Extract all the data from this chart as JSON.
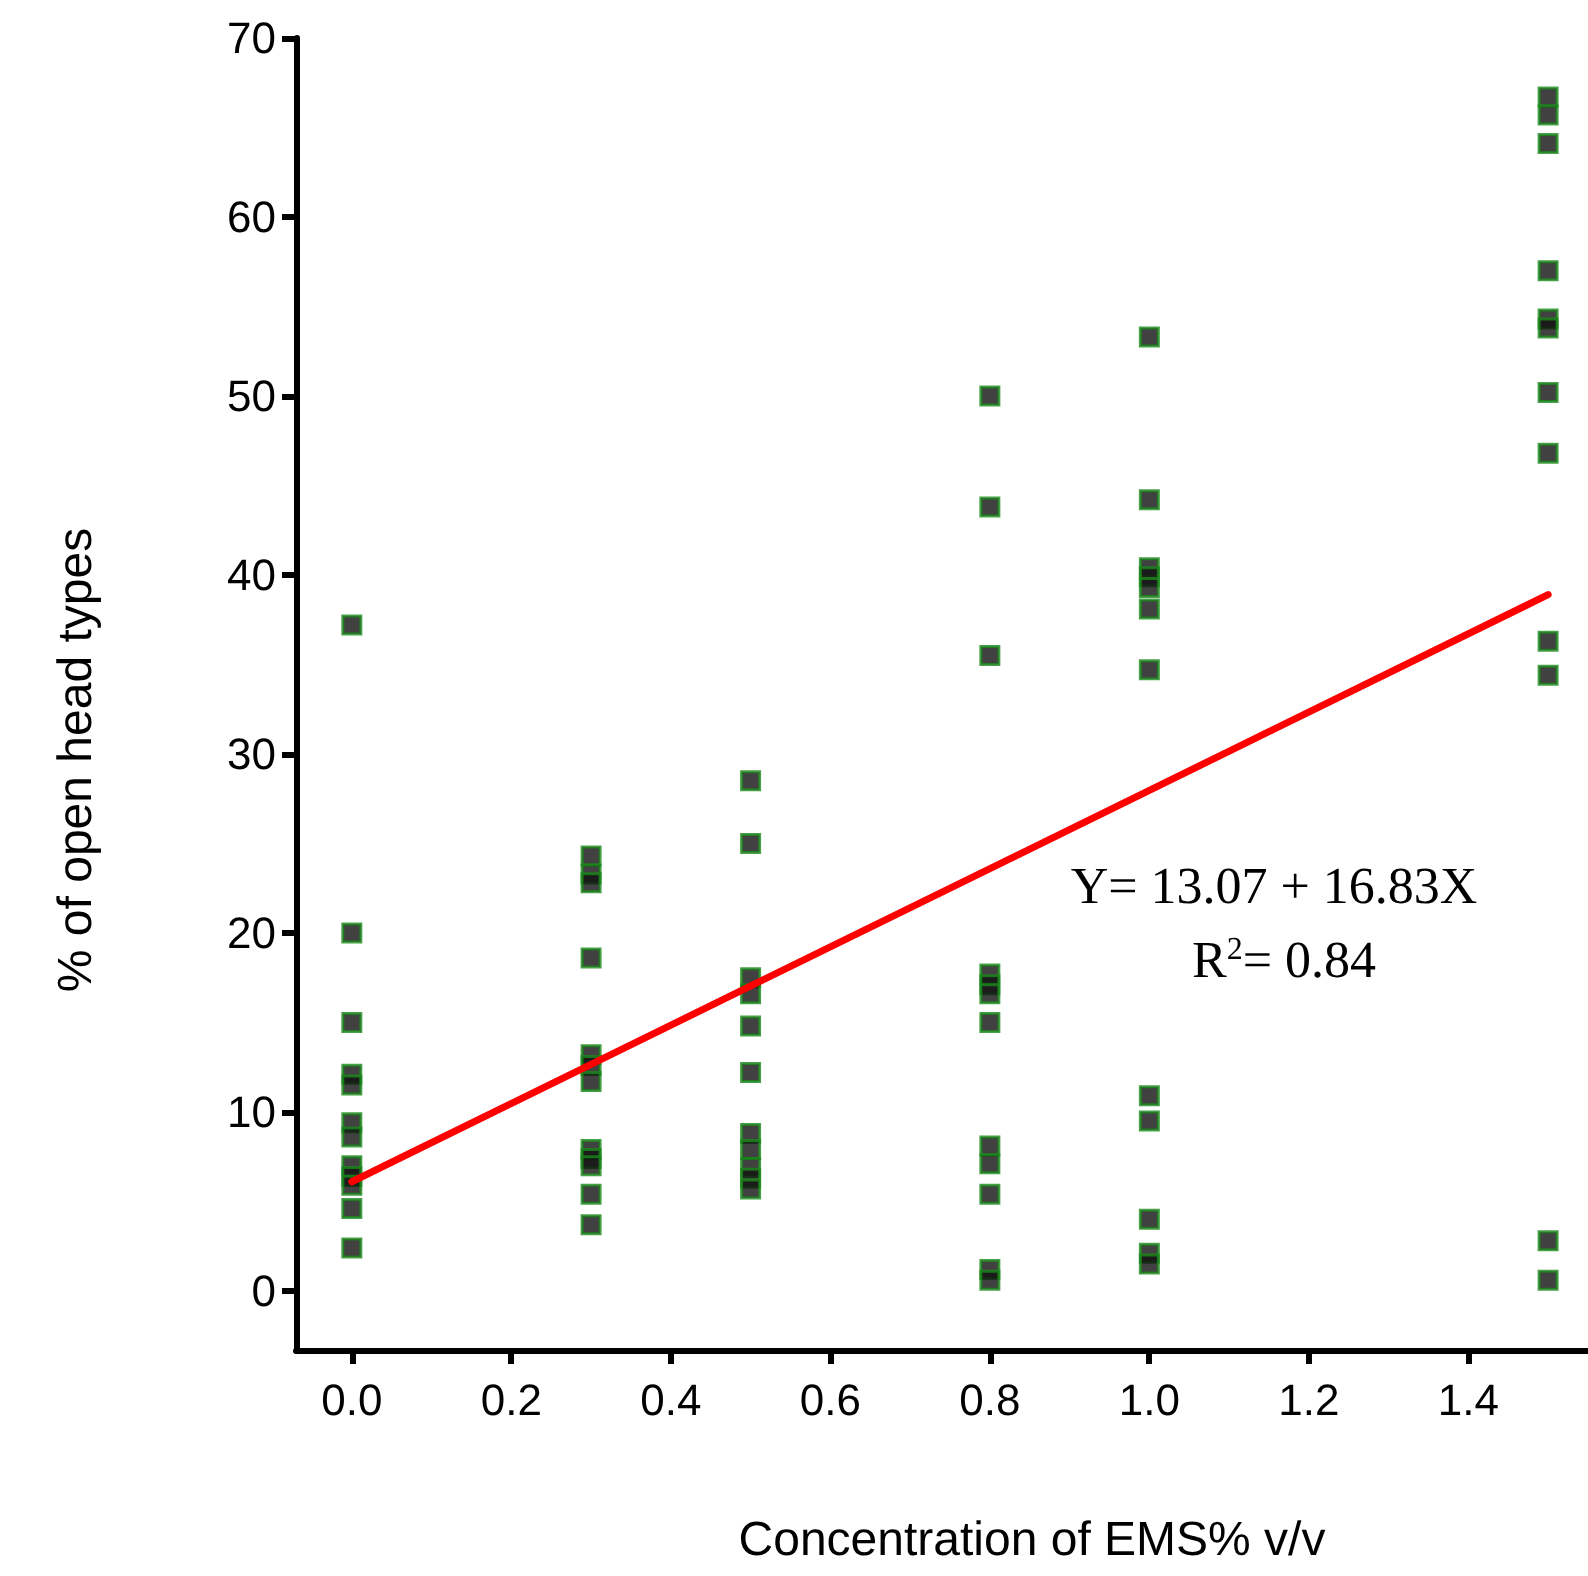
{
  "chart_data": {
    "type": "scatter",
    "xlabel": "Concentration of EMS% v/v",
    "ylabel": "% of open head types",
    "annotations": [
      "Y= 13.07 + 16.83X",
      "R$^{2}$= 0.84"
    ],
    "series": [
      {
        "color": "#111111",
        "marker": "square",
        "x": [
          0,
          0,
          0,
          0,
          0,
          0,
          0,
          0,
          0,
          0,
          0,
          0,
          0.3,
          0.3,
          0.3,
          0.3,
          0.3,
          0.3,
          0.3,
          0.3,
          0.3,
          0.3,
          0.3,
          0.3,
          0.5,
          0.5,
          0.5,
          0.5,
          0.5,
          0.5,
          0.5,
          0.5,
          0.5,
          0.5,
          0.5,
          0.8,
          0.8,
          0.8,
          0.8,
          0.8,
          0.8,
          0.8,
          0.8,
          0.8,
          0.8,
          0.8,
          0.8,
          1.0,
          1.0,
          1.0,
          1.0,
          1.0,
          1.0,
          1.0,
          1.0,
          1.0,
          1.0,
          1.0,
          1.0,
          1.5,
          1.5,
          1.5,
          1.5,
          1.5,
          1.5,
          1.5,
          1.5,
          1.5,
          1.5,
          1.5,
          1.5
        ],
        "values": [
          37.2,
          20.0,
          15.0,
          12.1,
          11.5,
          9.4,
          8.6,
          7.0,
          6.4,
          5.9,
          4.6,
          2.4,
          24.3,
          23.3,
          22.8,
          18.6,
          13.2,
          12.6,
          11.7,
          7.9,
          7.4,
          7.0,
          5.4,
          3.7,
          28.5,
          25.0,
          17.5,
          16.6,
          14.8,
          12.2,
          8.8,
          7.9,
          6.9,
          6.3,
          5.7,
          50.0,
          43.8,
          35.5,
          17.7,
          17.1,
          16.6,
          15.0,
          8.1,
          7.1,
          5.4,
          1.2,
          0.6,
          53.3,
          44.2,
          40.4,
          39.9,
          39.3,
          38.1,
          34.7,
          10.9,
          9.5,
          4.0,
          2.1,
          1.5,
          66.7,
          65.7,
          64.1,
          57.0,
          54.3,
          53.8,
          50.2,
          46.8,
          36.3,
          34.4,
          2.8,
          0.6
        ]
      },
      {
        "type": "line",
        "color": "#ff0000",
        "marker": "none",
        "line_style": "solid",
        "x": [
          0,
          1.5
        ],
        "values": [
          6.1,
          38.9
        ]
      }
    ],
    "xlim": [
      -0.07,
      1.55
    ],
    "ylim": [
      -3.3,
      70
    ],
    "xticks": [
      {
        "value": 0,
        "label": "0.0"
      },
      0.2,
      0.4,
      0.6,
      0.8,
      {
        "value": 1,
        "label": "1.0"
      },
      1.2,
      1.4
    ],
    "yticks": [
      0,
      10,
      20,
      30,
      40,
      50,
      60,
      70
    ],
    "grid": false
  }
}
